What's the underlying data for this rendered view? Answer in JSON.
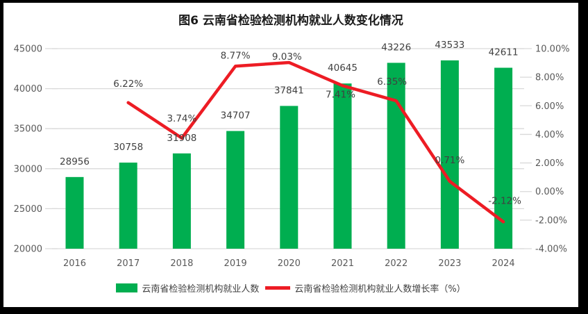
{
  "figure": {
    "title": "图6  云南省检验检测机构就业人数变化情况"
  },
  "legend": {
    "bar_label": "云南省检验检测机构就业人数",
    "line_label": "云南省检验检测机构就业人数增长率（%）"
  },
  "colors": {
    "bar": "#00AE50",
    "line": "#ED1C24",
    "grid": "#D9D9D9",
    "axis_text": "#595959",
    "data_label_text": "#404040",
    "title_text": "#1a1a1a",
    "background": "#FFFFFF",
    "frame_border": "#000000"
  },
  "chart_data": {
    "type": "combo-bar-line",
    "title": "图6  云南省检验检测机构就业人数变化情况",
    "categories": [
      "2016",
      "2017",
      "2018",
      "2019",
      "2020",
      "2021",
      "2022",
      "2023",
      "2024"
    ],
    "series": [
      {
        "name": "云南省检验检测机构就业人数",
        "type": "bar",
        "axis": "left",
        "color": "#00AE50",
        "values": [
          28956,
          30758,
          31908,
          34707,
          37841,
          40645,
          43226,
          43533,
          42611
        ],
        "data_labels": [
          "28956",
          "30758",
          "31908",
          "34707",
          "37841",
          "40645",
          "43226",
          "43533",
          "42611"
        ]
      },
      {
        "name": "云南省检验检测机构就业人数增长率（%）",
        "type": "line",
        "axis": "right",
        "color": "#ED1C24",
        "values": [
          null,
          6.22,
          3.74,
          8.77,
          9.03,
          7.41,
          6.35,
          0.71,
          -2.12
        ],
        "data_labels": [
          null,
          "6.22%",
          "3.74%",
          "8.77%",
          "9.03%",
          "7.41%",
          "6.35%",
          "0.71%",
          "-2.12%"
        ]
      }
    ],
    "left_axis": {
      "min": 20000,
      "max": 45000,
      "step": 5000,
      "tick_labels": [
        "20000",
        "25000",
        "30000",
        "35000",
        "40000",
        "45000"
      ]
    },
    "right_axis": {
      "min": -4,
      "max": 10,
      "step": 2,
      "tick_labels": [
        "-4.00%",
        "-2.00%",
        "0.00%",
        "2.00%",
        "4.00%",
        "6.00%",
        "8.00%",
        "10.00%"
      ]
    },
    "grid": "horizontal-on",
    "legend_position": "bottom"
  }
}
